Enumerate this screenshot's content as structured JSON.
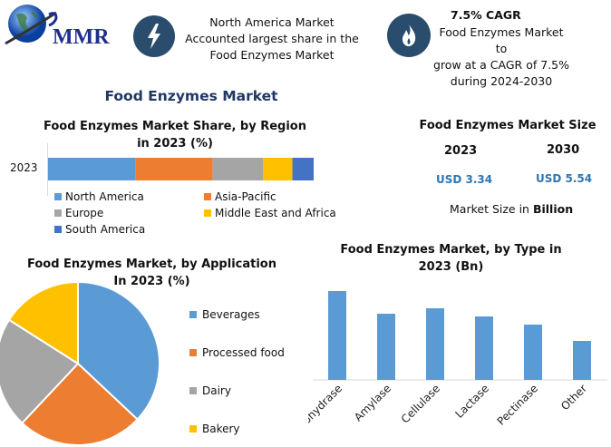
{
  "logo": {
    "text": "MMR"
  },
  "highlights": [
    {
      "icon": "lightning-bolt-icon",
      "lines": [
        "North America Market",
        "Accounted largest share in the",
        "Food Enzymes Market"
      ]
    },
    {
      "icon": "flame-icon",
      "heading": "7.5% CAGR",
      "lines": [
        "Food Enzymes Market to",
        "grow at a CAGR of 7.5%",
        "during 2024-2030"
      ]
    }
  ],
  "page_title": "Food Enzymes Market",
  "market_size": {
    "title": "Food Enzymes Market Size",
    "years": [
      "2023",
      "2030"
    ],
    "values": [
      "USD 3.34",
      "USD 5.54"
    ],
    "note_prefix": "Market Size in ",
    "note_unit": "Billion"
  },
  "colors": {
    "blue": "#5b9bd5",
    "orange": "#ed7d31",
    "gray": "#a5a5a5",
    "yellow": "#ffc000",
    "darkblue": "#4472c4",
    "navy": "#1f3864",
    "icon_bg": "#2a4d6e",
    "value_blue": "#2e75b6"
  },
  "chart_data": [
    {
      "type": "bar",
      "stacked": true,
      "orientation": "horizontal",
      "title": "Food Enzymes Market Share, by Region in 2023 (%)",
      "categories": [
        "2023"
      ],
      "series": [
        {
          "name": "North America",
          "values": [
            33
          ]
        },
        {
          "name": "Asia-Pacific",
          "values": [
            29
          ]
        },
        {
          "name": "Europe",
          "values": [
            19
          ]
        },
        {
          "name": "Middle East and Africa",
          "values": [
            11
          ]
        },
        {
          "name": "South America",
          "values": [
            8
          ]
        }
      ],
      "legend": "bottom"
    },
    {
      "type": "pie",
      "title": "Food Enzymes Market, by Application In 2023 (%)",
      "categories": [
        "Beverages",
        "Processed food",
        "Dairy",
        "Bakery"
      ],
      "values": [
        37,
        25,
        22,
        16
      ],
      "legend": "right"
    },
    {
      "type": "bar",
      "title": "Food Enzymes Market, by Type in 2023 (Bn)",
      "categories": [
        "Carbohydrase",
        "Amylase",
        "Cellulase",
        "Lactase",
        "Pectinase",
        "Other"
      ],
      "values": [
        98,
        73,
        79,
        70,
        61,
        43
      ],
      "ylim": [
        0,
        100
      ],
      "grid": false
    }
  ]
}
